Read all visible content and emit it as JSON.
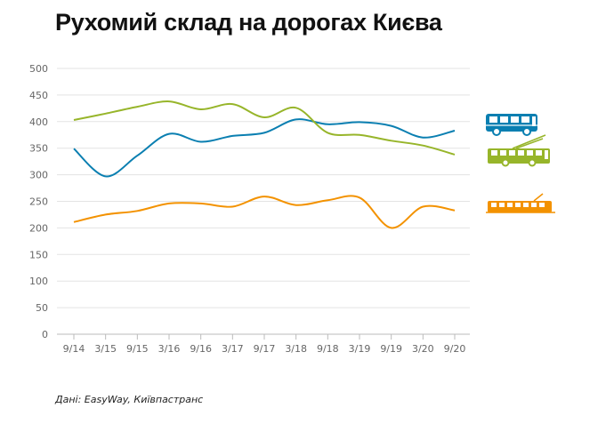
{
  "title": "Рухомий склад на дорогах Києва",
  "source": "Дані: EasyWay, Київпастранс",
  "chart_data": {
    "type": "line",
    "title": "Рухомий склад на дорогах Києва",
    "xlabel": "",
    "ylabel": "",
    "categories": [
      "9/14",
      "3/15",
      "9/15",
      "3/16",
      "9/16",
      "3/17",
      "9/17",
      "3/18",
      "9/18",
      "3/19",
      "9/19",
      "3/20",
      "9/20"
    ],
    "yticks": [
      "0",
      "50",
      "100",
      "150",
      "200",
      "250",
      "300",
      "350",
      "400",
      "450",
      "500"
    ],
    "ylim": [
      0,
      500
    ],
    "grid": "horizontal",
    "legend": "right, pictogram icons",
    "series": [
      {
        "icon": "bus-icon",
        "color": "#0a7fb1",
        "values": [
          349,
          297,
          336,
          377,
          362,
          373,
          379,
          404,
          395,
          399,
          392,
          370,
          383
        ]
      },
      {
        "icon": "trolleybus-icon",
        "color": "#97b52a",
        "values": [
          403,
          415,
          428,
          438,
          423,
          433,
          408,
          426,
          379,
          375,
          364,
          355,
          338
        ]
      },
      {
        "icon": "tram-icon",
        "color": "#f39200",
        "values": [
          211,
          225,
          232,
          246,
          246,
          240,
          259,
          243,
          252,
          257,
          200,
          240,
          233
        ]
      }
    ]
  }
}
